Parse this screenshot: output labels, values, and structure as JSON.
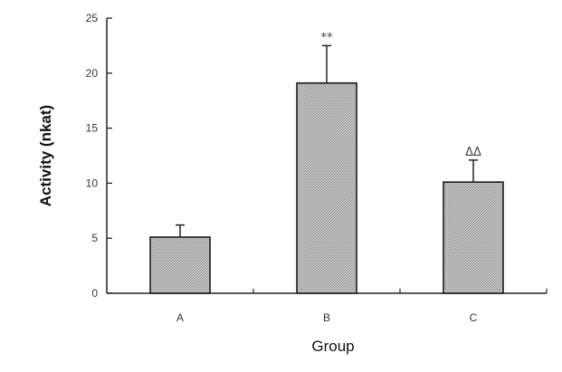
{
  "chart_data": {
    "type": "bar",
    "categories": [
      "A",
      "B",
      "C"
    ],
    "values": [
      5.1,
      19.1,
      10.1
    ],
    "errors": [
      1.1,
      3.4,
      2.0
    ],
    "annotations": [
      "",
      "**",
      "ΔΔ"
    ],
    "xlabel": "Group",
    "ylabel": "Activity (nkat)",
    "ylim": [
      0,
      25
    ],
    "yticks": [
      0,
      5,
      10,
      15,
      20,
      25
    ],
    "grid": false,
    "legend": "none",
    "bar_fill": "#b9b9b9",
    "bar_stroke": "#1a1a1a"
  }
}
